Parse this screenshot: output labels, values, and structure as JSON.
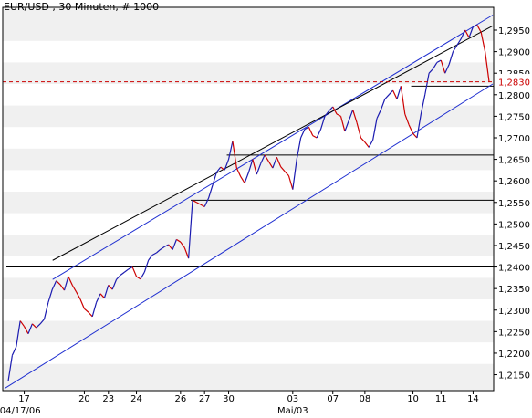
{
  "title": "EUR/USD , 30 Minuten, # 1000",
  "colors": {
    "background": "#ffffff",
    "band": "#f0f0f0",
    "price_up": "#1a1ab0",
    "price_down": "#cc0000",
    "channel_outer": "#1f2fd0",
    "channel_inner": "#000000",
    "support_lines": "#000000",
    "current_price_line": "#cc0000"
  },
  "chart_data": {
    "type": "line",
    "title": "EUR/USD , 30 Minuten, # 1000",
    "xlabel": "",
    "ylabel": "",
    "ylim": [
      1.2113,
      1.3003
    ],
    "y_ticks": [
      "1,2150",
      "1,2200",
      "1,2250",
      "1,2300",
      "1,2350",
      "1,2400",
      "1,2450",
      "1,2500",
      "1,2550",
      "1,2600",
      "1,2650",
      "1,2700",
      "1,2750",
      "1,2800",
      "1,2850",
      "1,2900",
      "1,2950"
    ],
    "y_tick_values": [
      1.215,
      1.22,
      1.225,
      1.23,
      1.235,
      1.24,
      1.245,
      1.25,
      1.255,
      1.26,
      1.265,
      1.27,
      1.275,
      1.28,
      1.285,
      1.29,
      1.295
    ],
    "x_ticks": [
      "17",
      "20",
      "23",
      "24",
      "26",
      "27",
      "30",
      "03",
      "07",
      "08",
      "10",
      "11",
      "14"
    ],
    "x_tick_index": [
      4,
      19,
      25,
      32,
      43,
      49,
      55,
      71,
      81,
      89,
      101,
      108,
      116
    ],
    "x_sub_labels": [
      "04/17/06",
      "Mai/03"
    ],
    "x_sub_label_index": [
      3,
      71
    ],
    "n_points": 121,
    "grid": "alternating horizontal bands",
    "legend": "none",
    "current_price": 1.283,
    "current_price_label": "1,2830",
    "series": [
      {
        "values": [
          1.2135,
          1.2195,
          1.2215,
          1.2275,
          1.2262,
          1.2245,
          1.2268,
          1.2259,
          1.2268,
          1.2279,
          1.2318,
          1.2348,
          1.2368,
          1.2359,
          1.2346,
          1.2378,
          1.2358,
          1.2342,
          1.2325,
          1.2303,
          1.2295,
          1.2285,
          1.2318,
          1.2338,
          1.2328,
          1.2358,
          1.2348,
          1.2371,
          1.2381,
          1.2388,
          1.2395,
          1.24,
          1.2378,
          1.2372,
          1.2388,
          1.2416,
          1.2428,
          1.2433,
          1.2441,
          1.2447,
          1.2452,
          1.244,
          1.2464,
          1.2458,
          1.2445,
          1.242,
          1.2555,
          1.255,
          1.2545,
          1.254,
          1.256,
          1.259,
          1.262,
          1.2632,
          1.2625,
          1.265,
          1.2692,
          1.263,
          1.261,
          1.2595,
          1.262,
          1.265,
          1.2615,
          1.264,
          1.266,
          1.2645,
          1.263,
          1.2655,
          1.2633,
          1.2622,
          1.2612,
          1.258,
          1.265,
          1.27,
          1.272,
          1.2725,
          1.2705,
          1.27,
          1.272,
          1.275,
          1.2762,
          1.2772,
          1.2755,
          1.275,
          1.2715,
          1.274,
          1.2765,
          1.2735,
          1.27,
          1.269,
          1.2678,
          1.2695,
          1.2745,
          1.2765,
          1.279,
          1.28,
          1.281,
          1.279,
          1.282,
          1.2755,
          1.273,
          1.271,
          1.27,
          1.2755,
          1.28,
          1.285,
          1.286,
          1.2875,
          1.288,
          1.285,
          1.287,
          1.29,
          1.2915,
          1.293,
          1.295,
          1.2933,
          1.2958,
          1.2962,
          1.2945,
          1.29,
          1.283
        ]
      }
    ]
  }
}
